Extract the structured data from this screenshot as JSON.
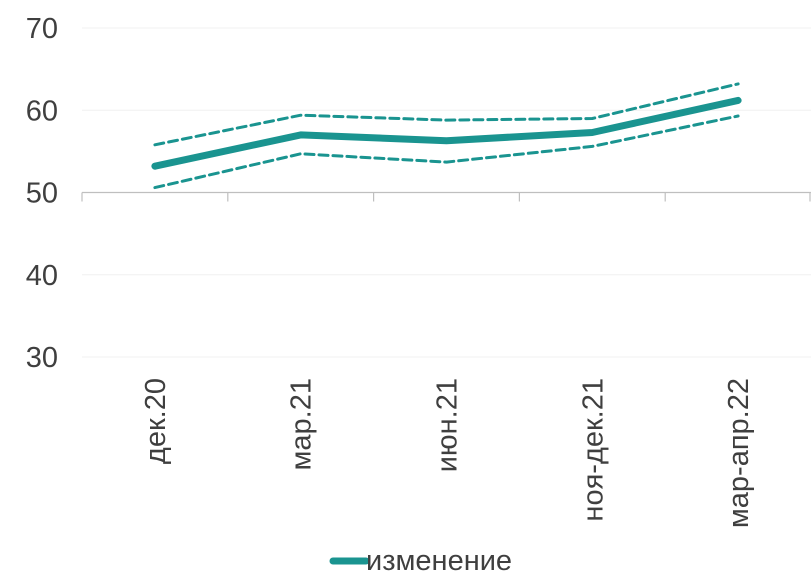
{
  "chart_data": {
    "type": "line",
    "categories": [
      "дек.20",
      "мар.21",
      "июн.21",
      "ноя-дек.21",
      "мар-апр.22"
    ],
    "series": [
      {
        "name": "изменение",
        "values": [
          53.2,
          57.0,
          56.3,
          57.3,
          61.2
        ],
        "style": "solid"
      },
      {
        "name": "",
        "values": [
          55.8,
          59.4,
          58.8,
          59.0,
          63.2
        ],
        "style": "dashed"
      },
      {
        "name": "",
        "values": [
          50.6,
          54.7,
          53.7,
          55.6,
          59.3
        ],
        "style": "dashed"
      }
    ],
    "yticks": [
      "70",
      "60",
      "50",
      "40",
      "30"
    ],
    "ylim": [
      30,
      70
    ],
    "x_axis_crosses_at": 50,
    "grid": true,
    "legend": "bottom-center",
    "colors": {
      "line": "#1a9490",
      "grid": "#f0f0f0",
      "axis": "#bfbfbf",
      "text": "#3f3f3f"
    }
  }
}
